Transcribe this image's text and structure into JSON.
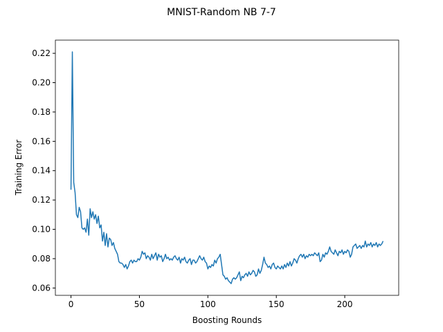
{
  "chart_data": {
    "type": "line",
    "title": "MNIST-Random NB 7-7",
    "xlabel": "Boosting Rounds",
    "ylabel": "Training Error",
    "x": [
      0,
      1,
      2,
      3,
      4,
      5,
      6,
      7,
      8,
      9,
      10,
      11,
      12,
      13,
      14,
      15,
      16,
      17,
      18,
      19,
      20,
      21,
      22,
      23,
      24,
      25,
      26,
      27,
      28,
      29,
      30,
      31,
      32,
      33,
      34,
      35,
      36,
      37,
      38,
      39,
      40,
      41,
      42,
      43,
      44,
      45,
      46,
      47,
      48,
      49,
      50,
      51,
      52,
      53,
      54,
      55,
      56,
      57,
      58,
      59,
      60,
      61,
      62,
      63,
      64,
      65,
      66,
      67,
      68,
      69,
      70,
      71,
      72,
      73,
      74,
      75,
      76,
      77,
      78,
      79,
      80,
      81,
      82,
      83,
      84,
      85,
      86,
      87,
      88,
      89,
      90,
      91,
      92,
      93,
      94,
      95,
      96,
      97,
      98,
      99,
      100,
      101,
      102,
      103,
      104,
      105,
      106,
      107,
      108,
      109,
      110,
      111,
      112,
      113,
      114,
      115,
      116,
      117,
      118,
      119,
      120,
      121,
      122,
      123,
      124,
      125,
      126,
      127,
      128,
      129,
      130,
      131,
      132,
      133,
      134,
      135,
      136,
      137,
      138,
      139,
      140,
      141,
      142,
      143,
      144,
      145,
      146,
      147,
      148,
      149,
      150,
      151,
      152,
      153,
      154,
      155,
      156,
      157,
      158,
      159,
      160,
      161,
      162,
      163,
      164,
      165,
      166,
      167,
      168,
      169,
      170,
      171,
      172,
      173,
      174,
      175,
      176,
      177,
      178,
      179,
      180,
      181,
      182,
      183,
      184,
      185,
      186,
      187,
      188,
      189,
      190,
      191,
      192,
      193,
      194,
      195,
      196,
      197,
      198,
      199,
      200,
      201,
      202,
      203,
      204,
      205,
      206,
      207,
      208,
      209,
      210,
      211,
      212,
      213,
      214,
      215,
      216,
      217,
      218,
      219,
      220,
      221,
      222,
      223,
      224,
      225,
      226,
      227,
      228
    ],
    "series": [
      {
        "color": "#1f77b4",
        "values": [
          0.127,
          0.221,
          0.132,
          0.125,
          0.11,
          0.108,
          0.115,
          0.112,
          0.101,
          0.1,
          0.101,
          0.098,
          0.107,
          0.096,
          0.114,
          0.108,
          0.112,
          0.107,
          0.11,
          0.104,
          0.109,
          0.101,
          0.103,
          0.092,
          0.098,
          0.089,
          0.097,
          0.088,
          0.094,
          0.093,
          0.089,
          0.091,
          0.087,
          0.085,
          0.083,
          0.078,
          0.077,
          0.077,
          0.076,
          0.074,
          0.076,
          0.073,
          0.075,
          0.078,
          0.079,
          0.077,
          0.079,
          0.078,
          0.078,
          0.08,
          0.079,
          0.081,
          0.085,
          0.083,
          0.084,
          0.08,
          0.082,
          0.081,
          0.079,
          0.083,
          0.08,
          0.082,
          0.084,
          0.079,
          0.083,
          0.081,
          0.082,
          0.078,
          0.08,
          0.083,
          0.08,
          0.081,
          0.079,
          0.08,
          0.079,
          0.081,
          0.082,
          0.08,
          0.079,
          0.081,
          0.077,
          0.08,
          0.079,
          0.081,
          0.078,
          0.077,
          0.079,
          0.08,
          0.076,
          0.079,
          0.079,
          0.077,
          0.078,
          0.08,
          0.082,
          0.08,
          0.079,
          0.081,
          0.078,
          0.077,
          0.073,
          0.075,
          0.074,
          0.076,
          0.075,
          0.079,
          0.077,
          0.08,
          0.081,
          0.083,
          0.076,
          0.069,
          0.068,
          0.066,
          0.067,
          0.065,
          0.064,
          0.063,
          0.066,
          0.067,
          0.066,
          0.067,
          0.069,
          0.071,
          0.065,
          0.068,
          0.067,
          0.069,
          0.07,
          0.068,
          0.071,
          0.069,
          0.07,
          0.072,
          0.071,
          0.068,
          0.069,
          0.073,
          0.07,
          0.072,
          0.076,
          0.081,
          0.077,
          0.076,
          0.074,
          0.075,
          0.073,
          0.076,
          0.077,
          0.074,
          0.073,
          0.075,
          0.074,
          0.073,
          0.075,
          0.073,
          0.076,
          0.074,
          0.077,
          0.075,
          0.078,
          0.075,
          0.077,
          0.08,
          0.079,
          0.077,
          0.08,
          0.082,
          0.083,
          0.081,
          0.083,
          0.08,
          0.082,
          0.081,
          0.083,
          0.082,
          0.083,
          0.082,
          0.084,
          0.083,
          0.082,
          0.084,
          0.078,
          0.079,
          0.083,
          0.081,
          0.084,
          0.083,
          0.085,
          0.088,
          0.085,
          0.084,
          0.083,
          0.086,
          0.084,
          0.082,
          0.085,
          0.084,
          0.086,
          0.083,
          0.085,
          0.084,
          0.086,
          0.085,
          0.081,
          0.083,
          0.088,
          0.089,
          0.09,
          0.087,
          0.088,
          0.089,
          0.087,
          0.089,
          0.088,
          0.092,
          0.088,
          0.09,
          0.089,
          0.091,
          0.088,
          0.09,
          0.089,
          0.091,
          0.088,
          0.09,
          0.089,
          0.09,
          0.092
        ]
      }
    ],
    "xlim": [
      -11.4,
      239.4
    ],
    "ylim": [
      0.055,
      0.229
    ],
    "xticks": [
      0,
      50,
      100,
      150,
      200
    ],
    "yticks": [
      0.06,
      0.08,
      {
        "value": 0.1,
        "label": "0.10"
      },
      0.12,
      0.14,
      0.16,
      0.18,
      {
        "value": 0.2,
        "label": "0.20"
      },
      0.22
    ]
  }
}
